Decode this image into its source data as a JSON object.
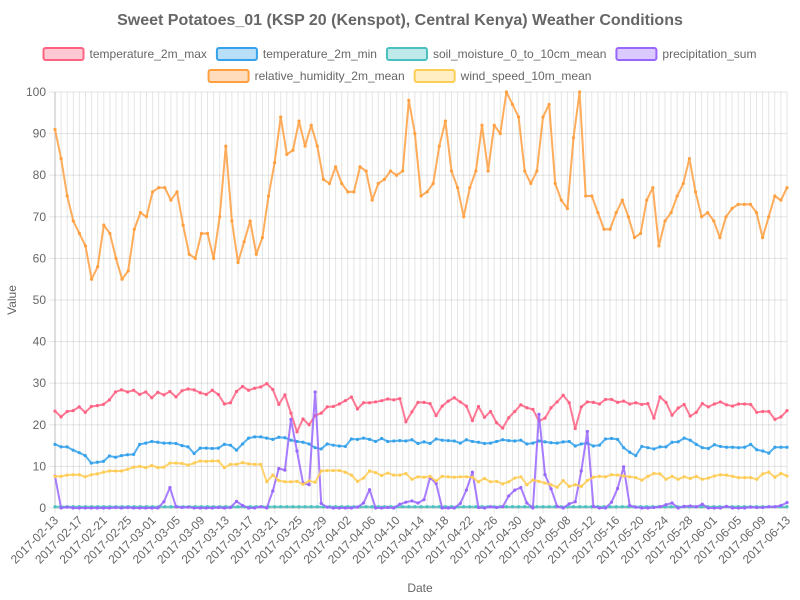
{
  "chart_data": {
    "type": "line",
    "title": "Sweet Potatoes_01 (KSP 20 (Kenspot), Central Kenya) Weather Conditions",
    "xlabel": "Date",
    "ylabel": "Value",
    "ylim": [
      0,
      100
    ],
    "yticks": [
      0,
      10,
      20,
      30,
      40,
      50,
      60,
      70,
      80,
      90,
      100
    ],
    "grid": true,
    "legend_position": "top",
    "x_start": "2017-02-13",
    "x_end": "2017-06-13",
    "x_tick_labels": [
      "2017-02-13",
      "2017-02-17",
      "2017-02-21",
      "2017-02-25",
      "2017-03-01",
      "2017-03-05",
      "2017-03-09",
      "2017-03-13",
      "2017-03-17",
      "2017-03-21",
      "2017-03-25",
      "2017-03-29",
      "2017-04-02",
      "2017-04-06",
      "2017-04-10",
      "2017-04-14",
      "2017-04-18",
      "2017-04-22",
      "2017-04-26",
      "2017-04-30",
      "2017-05-04",
      "2017-05-08",
      "2017-05-12",
      "2017-05-16",
      "2017-05-20",
      "2017-05-24",
      "2017-05-28",
      "2017-06-01",
      "2017-06-05",
      "2017-06-09",
      "2017-06-13"
    ],
    "series": [
      {
        "name": "temperature_2m_max",
        "color": "#ff6384",
        "values": [
          23.3,
          21.9,
          23.2,
          23.4,
          24.3,
          23.0,
          24.4,
          24.6,
          24.9,
          26.0,
          27.9,
          28.4,
          27.9,
          28.3,
          27.3,
          27.9,
          26.5,
          27.8,
          27.2,
          28.0,
          26.7,
          28.2,
          28.6,
          28.4,
          27.7,
          27.3,
          28.3,
          27.3,
          25.0,
          25.3,
          28.0,
          29.2,
          28.3,
          28.8,
          29.1,
          29.9,
          28.5,
          24.9,
          27.2,
          22.8,
          18.3,
          21.4,
          20.0,
          22.2,
          22.8,
          24.3,
          24.4,
          25.0,
          25.8,
          26.7,
          23.8,
          25.3,
          25.3,
          25.5,
          25.8,
          26.2,
          26.0,
          26.3,
          20.7,
          23.1,
          25.4,
          25.4,
          25.1,
          22.2,
          24.5,
          25.7,
          26.5,
          25.5,
          24.5,
          21.0,
          24.4,
          21.8,
          23.2,
          20.5,
          19.2,
          21.7,
          23.2,
          24.8,
          24.1,
          23.7,
          20.9,
          21.6,
          24.1,
          25.5,
          27.1,
          25.3,
          19.1,
          24.3,
          25.5,
          25.4,
          25.0,
          26.1,
          26.1,
          25.4,
          25.7,
          25.0,
          25.3,
          24.9,
          25.1,
          21.6,
          26.7,
          25.4,
          22.3,
          24.0,
          24.9,
          22.1,
          23.0,
          25.1,
          24.3,
          25.0,
          25.5,
          24.8,
          24.5,
          25.0,
          25.0,
          24.9,
          23.0,
          23.2,
          23.2,
          21.3,
          21.9,
          23.4
        ]
      },
      {
        "name": "temperature_2m_min",
        "color": "#36a2eb",
        "values": [
          15.3,
          14.7,
          14.7,
          13.9,
          13.3,
          12.6,
          10.8,
          11.0,
          11.2,
          12.5,
          12.2,
          12.6,
          12.8,
          12.9,
          15.3,
          15.6,
          16.0,
          15.8,
          15.6,
          15.6,
          15.5,
          15.0,
          14.7,
          13.1,
          14.4,
          14.4,
          14.3,
          14.4,
          15.3,
          15.1,
          13.9,
          15.4,
          16.8,
          17.1,
          17.1,
          16.8,
          16.5,
          17.0,
          16.9,
          16.3,
          16.0,
          15.8,
          15.4,
          14.5,
          14.2,
          15.4,
          15.1,
          14.9,
          14.8,
          16.6,
          16.5,
          16.8,
          16.5,
          16.0,
          16.7,
          16.0,
          16.1,
          16.2,
          16.1,
          16.4,
          15.5,
          15.9,
          15.5,
          16.6,
          16.3,
          16.2,
          16.1,
          15.6,
          16.4,
          16.0,
          15.8,
          15.5,
          15.6,
          16.0,
          16.4,
          16.2,
          16.1,
          16.3,
          15.4,
          15.6,
          16.1,
          15.9,
          15.7,
          15.6,
          15.9,
          16.0,
          14.9,
          15.4,
          15.6,
          14.9,
          15.1,
          16.6,
          16.7,
          16.5,
          14.5,
          13.4,
          12.6,
          14.8,
          14.5,
          14.2,
          14.7,
          14.7,
          15.8,
          15.9,
          16.8,
          16.3,
          15.3,
          14.5,
          14.3,
          15.2,
          14.8,
          14.6,
          14.6,
          14.5,
          14.6,
          15.3,
          14.0,
          13.7,
          13.2,
          14.6,
          14.6,
          14.6
        ]
      },
      {
        "name": "soil_moisture_0_to_10cm_mean",
        "color": "#4bc0c0",
        "values": [
          0.3,
          0.3,
          0.3,
          0.3,
          0.3,
          0.3,
          0.3,
          0.3,
          0.3,
          0.3,
          0.3,
          0.3,
          0.3,
          0.3,
          0.3,
          0.3,
          0.3,
          0.3,
          0.3,
          0.3,
          0.3,
          0.3,
          0.3,
          0.3,
          0.3,
          0.3,
          0.3,
          0.3,
          0.3,
          0.3,
          0.3,
          0.3,
          0.3,
          0.3,
          0.3,
          0.3,
          0.3,
          0.3,
          0.3,
          0.3,
          0.3,
          0.3,
          0.3,
          0.3,
          0.3,
          0.3,
          0.3,
          0.3,
          0.3,
          0.3,
          0.3,
          0.3,
          0.3,
          0.3,
          0.3,
          0.3,
          0.3,
          0.3,
          0.3,
          0.3,
          0.3,
          0.3,
          0.3,
          0.3,
          0.3,
          0.3,
          0.3,
          0.3,
          0.3,
          0.3,
          0.3,
          0.3,
          0.3,
          0.3,
          0.3,
          0.3,
          0.3,
          0.3,
          0.3,
          0.3,
          0.3,
          0.3,
          0.3,
          0.3,
          0.3,
          0.3,
          0.3,
          0.3,
          0.3,
          0.3,
          0.3,
          0.3,
          0.3,
          0.3,
          0.3,
          0.3,
          0.3,
          0.3,
          0.3,
          0.3,
          0.3,
          0.3,
          0.3,
          0.3,
          0.3,
          0.3,
          0.3,
          0.3,
          0.3,
          0.3,
          0.3,
          0.3,
          0.3,
          0.3,
          0.3,
          0.3,
          0.3,
          0.3,
          0.3,
          0.3,
          0.3
        ]
      },
      {
        "name": "precipitation_sum",
        "color": "#9966ff",
        "values": [
          7.7,
          0.0,
          0.2,
          0.0,
          0.0,
          0.0,
          0.0,
          0.0,
          0.0,
          0.0,
          0.1,
          0.0,
          0.1,
          0.0,
          0.0,
          0.0,
          0.0,
          0.0,
          1.5,
          4.9,
          0.3,
          0.1,
          0.2,
          0.0,
          0.0,
          0.0,
          0.0,
          0.1,
          0.0,
          0.1,
          1.6,
          0.6,
          0.0,
          0.0,
          0.3,
          0.0,
          4.1,
          9.5,
          9.1,
          21.3,
          13.7,
          6.0,
          5.6,
          27.9,
          1.1,
          0.2,
          0.0,
          0.0,
          0.0,
          0.0,
          0.2,
          1.2,
          4.4,
          0.0,
          0.0,
          0.1,
          0.0,
          0.9,
          1.4,
          1.7,
          1.2,
          2.0,
          7.3,
          5.9,
          0.0,
          0.0,
          0.0,
          1.1,
          4.3,
          8.6,
          0.1,
          0.0,
          0.3,
          0.1,
          0.3,
          2.9,
          4.3,
          4.9,
          1.2,
          0.0,
          22.5,
          8.0,
          4.6,
          0.4,
          0.0,
          1.0,
          1.5,
          8.9,
          18.4,
          0.4,
          0.0,
          0.0,
          1.4,
          4.7,
          9.9,
          0.6,
          0.2,
          0.0,
          0.0,
          0.1,
          0.3,
          0.8,
          1.2,
          0.0,
          0.4,
          0.5,
          0.3,
          0.9,
          0.0,
          0.0,
          0.0,
          0.4,
          0.0,
          0.0,
          0.0,
          0.2,
          0.1,
          0.1,
          0.3,
          0.3,
          0.6,
          1.3
        ]
      },
      {
        "name": "relative_humidity_2m_mean",
        "color": "#ff9f40",
        "values": [
          91,
          84,
          75,
          69,
          66,
          63,
          55,
          58,
          68,
          66,
          60,
          55,
          57,
          67,
          71,
          70,
          76,
          77,
          77,
          74,
          76,
          68,
          61,
          60,
          66,
          66,
          60,
          70,
          87,
          69,
          59,
          64,
          69,
          61,
          65,
          75,
          83,
          94,
          85,
          86,
          93,
          87,
          92,
          87,
          79,
          78,
          82,
          78,
          76,
          76,
          82,
          81,
          74,
          78,
          79,
          81,
          80,
          81,
          98,
          90,
          75,
          76,
          78,
          87,
          93,
          81,
          77,
          70,
          77,
          81,
          92,
          81,
          92,
          90,
          100,
          97,
          94,
          81,
          78,
          81,
          94,
          97,
          78,
          74,
          72,
          89,
          100,
          75,
          75,
          71,
          67,
          67,
          71,
          74,
          70,
          65,
          66,
          74,
          77,
          63,
          69,
          71,
          75,
          78,
          84,
          76,
          70,
          71,
          69,
          65,
          70,
          72,
          73,
          73,
          73,
          71,
          65,
          70,
          75,
          74,
          77
        ]
      },
      {
        "name": "wind_speed_10m_mean",
        "color": "#ffcd56",
        "values": [
          7.6,
          7.6,
          7.9,
          8.0,
          8.0,
          7.5,
          8.0,
          8.2,
          8.6,
          8.9,
          8.9,
          8.9,
          9.3,
          9.8,
          10.0,
          9.7,
          10.2,
          9.7,
          9.8,
          10.8,
          10.8,
          10.7,
          10.3,
          10.8,
          11.3,
          11.2,
          11.3,
          11.3,
          9.7,
          10.5,
          10.5,
          10.9,
          10.6,
          10.5,
          10.5,
          6.3,
          7.9,
          6.6,
          6.3,
          6.3,
          6.4,
          5.7,
          6.5,
          6.2,
          8.9,
          9.0,
          9.0,
          9.0,
          8.6,
          7.9,
          6.4,
          7.2,
          8.9,
          8.5,
          7.8,
          8.4,
          7.9,
          7.9,
          8.3,
          6.9,
          7.5,
          7.4,
          7.6,
          6.5,
          7.6,
          7.5,
          7.4,
          7.5,
          7.5,
          7.4,
          6.3,
          7.1,
          6.3,
          6.4,
          5.8,
          6.3,
          7.2,
          7.5,
          5.6,
          6.7,
          6.4,
          6.0,
          5.6,
          5.0,
          6.6,
          5.2,
          5.6,
          5.2,
          6.6,
          7.4,
          7.6,
          7.5,
          8.0,
          7.9,
          7.7,
          7.5,
          7.3,
          6.7,
          7.6,
          8.3,
          8.2,
          6.9,
          7.6,
          6.9,
          7.5,
          7.1,
          7.6,
          6.9,
          7.2,
          7.7,
          8.0,
          7.9,
          7.6,
          7.3,
          7.3,
          7.3,
          6.9,
          8.2,
          8.6,
          7.4,
          8.3,
          7.7
        ]
      }
    ]
  }
}
